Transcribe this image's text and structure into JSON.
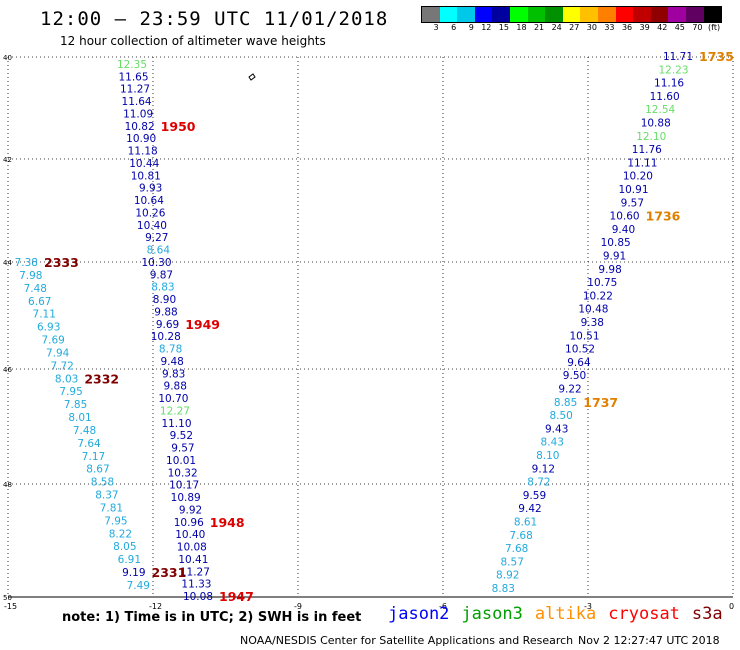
{
  "title": "12:00 — 23:59 UTC 11/01/2018",
  "subtitle": "12 hour collection of altimeter wave heights",
  "colorbar": {
    "colors": [
      "#777777",
      "#00ffff",
      "#00c8e8",
      "#0000ff",
      "#0000a0",
      "#00ff00",
      "#00c000",
      "#009000",
      "#ffff00",
      "#ffc000",
      "#ff8000",
      "#ff0000",
      "#c00000",
      "#900000",
      "#a000a0",
      "#600060",
      "#000000"
    ],
    "labels": [
      "3",
      "6",
      "9",
      "12",
      "15",
      "18",
      "21",
      "24",
      "27",
      "30",
      "33",
      "36",
      "39",
      "42",
      "45",
      "70",
      "(ft)"
    ]
  },
  "axes": {
    "lat_labels": [
      "40",
      "42",
      "44",
      "46",
      "48",
      "50"
    ],
    "lon_labels": [
      "-15",
      "-12",
      "-9",
      "-6",
      "-3",
      "0"
    ]
  },
  "note": "note:  1) Time is in UTC;  2) SWH is in feet",
  "satellites": [
    {
      "name": "jason2",
      "color": "#0000ff"
    },
    {
      "name": "jason3",
      "color": "#00a000"
    },
    {
      "name": "altika",
      "color": "#ff9000"
    },
    {
      "name": "cryosat",
      "color": "#ff0000"
    },
    {
      "name": "s3a",
      "color": "#800000"
    }
  ],
  "credit": "NOAA/NESDIS Center for Satellite Applications and Research",
  "timestamp": "Nov  2 12:27:47 UTC 2018",
  "left_track": [
    [
      "12.35",
      "#66dd66"
    ],
    [
      "11.65",
      "#0000aa"
    ],
    [
      "11.27",
      "#0000aa"
    ],
    [
      "11.64",
      "#0000aa"
    ],
    [
      "11.09",
      "#0000aa"
    ],
    [
      "10.82",
      "#0000aa"
    ],
    [
      "10.90",
      "#0000aa"
    ],
    [
      "11.18",
      "#0000aa"
    ],
    [
      "10.44",
      "#0000aa"
    ],
    [
      "10.81",
      "#0000aa"
    ],
    [
      "9.93",
      "#0000aa"
    ],
    [
      "10.64",
      "#0000aa"
    ],
    [
      "10.26",
      "#0000aa"
    ],
    [
      "10.40",
      "#0000aa"
    ],
    [
      "9.27",
      "#0000aa"
    ],
    [
      "8.64",
      "#22aadd"
    ],
    [
      "10.30",
      "#0000aa"
    ],
    [
      "9.87",
      "#0000aa"
    ],
    [
      "8.83",
      "#22aadd"
    ],
    [
      "8.90",
      "#0000aa"
    ],
    [
      "9.88",
      "#0000aa"
    ],
    [
      "9.69",
      "#0000aa"
    ],
    [
      "10.28",
      "#0000aa"
    ],
    [
      "8.78",
      "#22aadd"
    ],
    [
      "9.48",
      "#0000aa"
    ],
    [
      "9.83",
      "#0000aa"
    ],
    [
      "9.88",
      "#0000aa"
    ],
    [
      "10.70",
      "#0000aa"
    ],
    [
      "12.27",
      "#66dd66"
    ],
    [
      "11.10",
      "#0000aa"
    ],
    [
      "9.52",
      "#0000aa"
    ],
    [
      "9.57",
      "#0000aa"
    ],
    [
      "10.01",
      "#0000aa"
    ],
    [
      "10.32",
      "#0000aa"
    ],
    [
      "10.17",
      "#0000aa"
    ],
    [
      "10.89",
      "#0000aa"
    ],
    [
      "9.92",
      "#0000aa"
    ],
    [
      "10.96",
      "#0000aa"
    ],
    [
      "10.40",
      "#0000aa"
    ],
    [
      "10.08",
      "#0000aa"
    ],
    [
      "10.41",
      "#0000aa"
    ],
    [
      "11.27",
      "#0000aa"
    ],
    [
      "11.33",
      "#0000aa"
    ],
    [
      "10.08",
      "#0000aa"
    ]
  ],
  "mid_track": [
    [
      "7.38",
      "#22aadd"
    ],
    [
      "7.98",
      "#22aadd"
    ],
    [
      "7.48",
      "#22aadd"
    ],
    [
      "6.67",
      "#22aadd"
    ],
    [
      "7.11",
      "#22aadd"
    ],
    [
      "6.93",
      "#22aadd"
    ],
    [
      "7.69",
      "#22aadd"
    ],
    [
      "7.94",
      "#22aadd"
    ],
    [
      "7.72",
      "#22aadd"
    ],
    [
      "8.03",
      "#22aadd"
    ],
    [
      "7.95",
      "#22aadd"
    ],
    [
      "7.85",
      "#22aadd"
    ],
    [
      "8.01",
      "#22aadd"
    ],
    [
      "7.48",
      "#22aadd"
    ],
    [
      "7.64",
      "#22aadd"
    ],
    [
      "7.17",
      "#22aadd"
    ],
    [
      "8.67",
      "#22aadd"
    ],
    [
      "8.58",
      "#22aadd"
    ],
    [
      "8.37",
      "#22aadd"
    ],
    [
      "7.81",
      "#22aadd"
    ],
    [
      "7.95",
      "#22aadd"
    ],
    [
      "8.22",
      "#22aadd"
    ],
    [
      "8.05",
      "#22aadd"
    ],
    [
      "6.91",
      "#22aadd"
    ],
    [
      "9.19",
      "#0000aa"
    ],
    [
      "7.49",
      "#22aadd"
    ]
  ],
  "right_track": [
    [
      "11.71",
      "#0000aa"
    ],
    [
      "12.23",
      "#66dd66"
    ],
    [
      "11.16",
      "#0000aa"
    ],
    [
      "11.60",
      "#0000aa"
    ],
    [
      "12.54",
      "#66dd66"
    ],
    [
      "10.88",
      "#0000aa"
    ],
    [
      "12.10",
      "#66dd66"
    ],
    [
      "11.76",
      "#0000aa"
    ],
    [
      "11.11",
      "#0000aa"
    ],
    [
      "10.20",
      "#0000aa"
    ],
    [
      "10.91",
      "#0000aa"
    ],
    [
      "9.57",
      "#0000aa"
    ],
    [
      "10.60",
      "#0000aa"
    ],
    [
      "9.40",
      "#0000aa"
    ],
    [
      "10.85",
      "#0000aa"
    ],
    [
      "9.91",
      "#0000aa"
    ],
    [
      "9.98",
      "#0000aa"
    ],
    [
      "10.75",
      "#0000aa"
    ],
    [
      "10.22",
      "#0000aa"
    ],
    [
      "10.48",
      "#0000aa"
    ],
    [
      "9.38",
      "#0000aa"
    ],
    [
      "10.51",
      "#0000aa"
    ],
    [
      "10.52",
      "#0000aa"
    ],
    [
      "9.64",
      "#0000aa"
    ],
    [
      "9.50",
      "#0000aa"
    ],
    [
      "9.22",
      "#0000aa"
    ],
    [
      "8.85",
      "#22aadd"
    ],
    [
      "8.50",
      "#22aadd"
    ],
    [
      "9.43",
      "#0000aa"
    ],
    [
      "8.43",
      "#22aadd"
    ],
    [
      "8.10",
      "#22aadd"
    ],
    [
      "9.12",
      "#0000aa"
    ],
    [
      "8.72",
      "#22aadd"
    ],
    [
      "9.59",
      "#0000aa"
    ],
    [
      "9.42",
      "#0000aa"
    ],
    [
      "8.61",
      "#22aadd"
    ],
    [
      "7.68",
      "#22aadd"
    ],
    [
      "7.68",
      "#22aadd"
    ],
    [
      "8.57",
      "#22aadd"
    ],
    [
      "8.92",
      "#22aadd"
    ],
    [
      "8.83",
      "#22aadd"
    ]
  ],
  "time_labels": [
    {
      "text": "1950",
      "color": "#dd0000",
      "track": "left",
      "index": 5
    },
    {
      "text": "1949",
      "color": "#dd0000",
      "track": "left",
      "index": 21
    },
    {
      "text": "1948",
      "color": "#dd0000",
      "track": "left",
      "index": 37
    },
    {
      "text": "1947",
      "color": "#dd0000",
      "track": "left",
      "index": 43
    },
    {
      "text": "2333",
      "color": "#800000",
      "track": "mid",
      "index": 0
    },
    {
      "text": "2332",
      "color": "#800000",
      "track": "mid",
      "index": 9
    },
    {
      "text": "2331",
      "color": "#800000",
      "track": "mid",
      "index": 24
    },
    {
      "text": "1735",
      "color": "#e08000",
      "track": "right",
      "index": 0
    },
    {
      "text": "1736",
      "color": "#e08000",
      "track": "right",
      "index": 12
    },
    {
      "text": "1737",
      "color": "#e08000",
      "track": "right",
      "index": 26
    }
  ]
}
